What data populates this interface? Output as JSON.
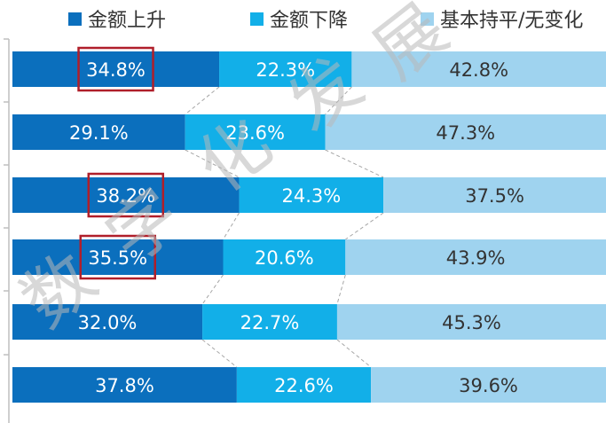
{
  "chart_data": {
    "type": "bar",
    "orientation": "horizontal",
    "stacked": "percent",
    "series": [
      {
        "name": "金额上升",
        "color": "#0b6fbd",
        "values": [
          34.8,
          29.1,
          38.2,
          35.5,
          32.0,
          37.8
        ]
      },
      {
        "name": "金额下降",
        "color": "#12afe8",
        "values": [
          22.3,
          23.6,
          24.3,
          20.6,
          22.7,
          22.6
        ]
      },
      {
        "name": "基本持平/无变化",
        "color": "#9fd3ef",
        "values": [
          42.8,
          47.3,
          37.5,
          43.9,
          45.3,
          39.6
        ]
      }
    ],
    "label_text": [
      [
        "34.8%",
        "22.3%",
        "42.8%"
      ],
      [
        "29.1%",
        "23.6%",
        "47.3%"
      ],
      [
        "38.2%",
        "24.3%",
        "37.5%"
      ],
      [
        "35.5%",
        "20.6%",
        "43.9%"
      ],
      [
        "32.0%",
        "22.7%",
        "45.3%"
      ],
      [
        "37.8%",
        "22.6%",
        "39.6%"
      ]
    ],
    "highlighted": [
      [
        0,
        0
      ],
      [
        2,
        0
      ],
      [
        3,
        0
      ]
    ],
    "highlight_color": "#b01f2a",
    "legend_position": "top",
    "grid": false
  },
  "watermark": "数 字 化 发 展"
}
